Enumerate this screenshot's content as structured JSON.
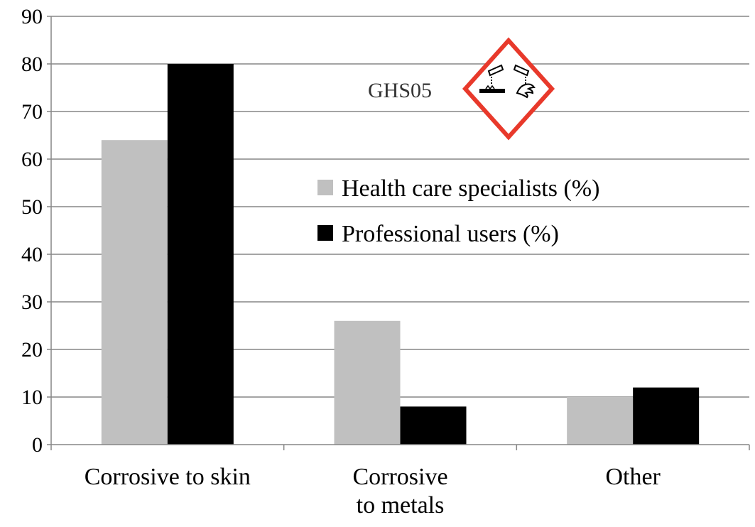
{
  "chart_data": {
    "type": "bar",
    "categories": [
      "Corrosive to skin",
      "Corrosive to metals",
      "Other"
    ],
    "category_lines": [
      [
        "Corrosive to skin"
      ],
      [
        "Corrosive",
        "to metals"
      ],
      [
        "Other"
      ]
    ],
    "series": [
      {
        "name": "Health care specialists (%)",
        "values": [
          64,
          26,
          10
        ],
        "color": "#c0c0c0"
      },
      {
        "name": "Professional users (%)",
        "values": [
          80,
          8,
          12
        ],
        "color": "#000000"
      }
    ],
    "ylim": [
      0,
      90
    ],
    "yticks": [
      "0",
      "10",
      "20",
      "30",
      "40",
      "50",
      "60",
      "70",
      "80",
      "90"
    ],
    "grid": true,
    "legend_position": "center-right",
    "gridline_color": "#868686"
  },
  "pictogram": {
    "label": "GHS05",
    "icon": "corrosion-pictogram-icon",
    "border_color": "#e8392b"
  }
}
